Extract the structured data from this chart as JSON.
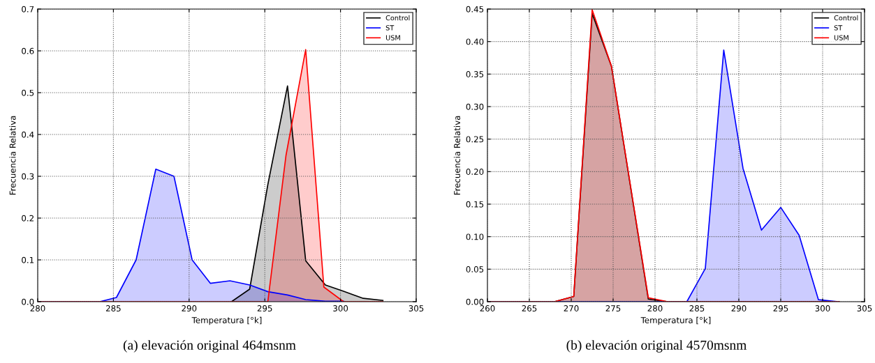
{
  "chart_data": [
    {
      "type": "area",
      "xlabel": "Temperatura [°k]",
      "ylabel": "Frecuencia Relativa",
      "xlim": [
        280,
        305
      ],
      "xticks": [
        280,
        285,
        290,
        295,
        300,
        305
      ],
      "ylim": [
        0,
        0.7
      ],
      "yticks": [
        {
          "value": 0,
          "label": "0.0"
        },
        0.1,
        0.2,
        0.3,
        0.4,
        0.5,
        0.6,
        0.7
      ],
      "grid": true,
      "legend": "top right",
      "annotations": [
        "(a) elevación original 464msnm"
      ],
      "series": [
        {
          "name": "Control",
          "color": "#000000",
          "x": [
            292.8,
            294.0,
            295.2,
            296.5,
            297.7,
            299.0,
            300.2,
            301.5,
            302.8
          ],
          "values": [
            0,
            0.03,
            0.28,
            0.516,
            0.098,
            0.04,
            0.025,
            0.008,
            0.003
          ]
        },
        {
          "name": "ST",
          "color": "#0000ff",
          "x": [
            280,
            284.1,
            285.2,
            286.5,
            287.8,
            289.0,
            290.2,
            291.4,
            292.7,
            294.0,
            295.2,
            296.5,
            297.7,
            299.0,
            300.2
          ],
          "values": [
            0,
            0,
            0.01,
            0.1,
            0.317,
            0.3,
            0.1,
            0.044,
            0.05,
            0.04,
            0.024,
            0.016,
            0.005,
            0.001,
            0.001
          ]
        },
        {
          "name": "USM",
          "color": "#ff0000",
          "x": [
            280,
            295.2,
            296.4,
            297.7,
            298.9,
            300.2,
            302.8
          ],
          "values": [
            0,
            0,
            0.35,
            0.603,
            0.035,
            0,
            0
          ]
        }
      ]
    },
    {
      "type": "area",
      "xlabel": "Temperatura [°k]",
      "ylabel": "Frecuencia Relativa",
      "xlim": [
        260,
        305
      ],
      "xticks": [
        260,
        265,
        270,
        275,
        280,
        285,
        290,
        295,
        300,
        305
      ],
      "ylim": [
        0,
        0.45
      ],
      "yticks": [
        {
          "value": 0,
          "label": "0.00"
        },
        {
          "value": 0.05,
          "label": "0.05"
        },
        {
          "value": 0.1,
          "label": "0.10"
        },
        {
          "value": 0.15,
          "label": "0.15"
        },
        {
          "value": 0.2,
          "label": "0.20"
        },
        {
          "value": 0.25,
          "label": "0.25"
        },
        {
          "value": 0.3,
          "label": "0.30"
        },
        {
          "value": 0.35,
          "label": "0.35"
        },
        {
          "value": 0.4,
          "label": "0.40"
        },
        {
          "value": 0.45,
          "label": "0.45"
        }
      ],
      "grid": true,
      "legend": "top right",
      "annotations": [
        "(b) elevación original 4570msnm"
      ],
      "series": [
        {
          "name": "Control",
          "color": "#000000",
          "x": [
            260,
            268,
            270.3,
            272.5,
            274.8,
            279.2,
            281.5,
            302
          ],
          "values": [
            0,
            0,
            0.008,
            0.443,
            0.362,
            0.004,
            0,
            0
          ]
        },
        {
          "name": "ST",
          "color": "#0000ff",
          "x": [
            260,
            283.8,
            286.0,
            288.2,
            290.5,
            292.7,
            295.0,
            297.2,
            299.5,
            301.8
          ],
          "values": [
            0,
            0,
            0.051,
            0.387,
            0.205,
            0.11,
            0.145,
            0.102,
            0.003,
            0
          ]
        },
        {
          "name": "USM",
          "color": "#ff0000",
          "x": [
            260,
            268,
            270.3,
            272.5,
            274.8,
            279.2,
            281.5,
            302
          ],
          "values": [
            0,
            0,
            0.008,
            0.449,
            0.362,
            0.006,
            0,
            0
          ]
        }
      ]
    }
  ]
}
